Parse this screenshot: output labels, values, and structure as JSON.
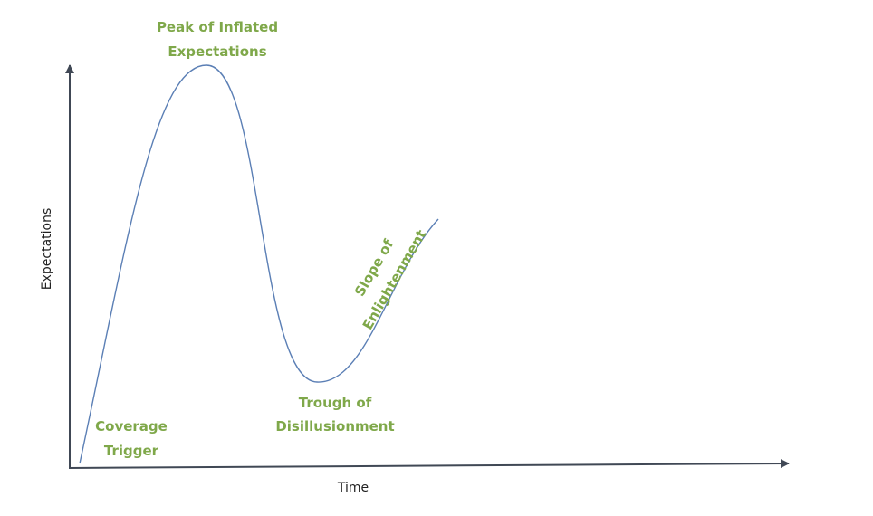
{
  "diagram": {
    "axes": {
      "x_label": "Time",
      "y_label": "Expectations",
      "axis_color": "#404855"
    },
    "curve_color": "#5b7fb5",
    "label_color": "#7fa84a",
    "phases": [
      {
        "line1": "Coverage",
        "line2": "Trigger"
      },
      {
        "line1": "Peak of Inflated",
        "line2": "Expectations"
      },
      {
        "line1": "Trough of",
        "line2": "Disillusionment"
      },
      {
        "line1": "Slope of",
        "line2": "Enlightenment"
      }
    ]
  }
}
